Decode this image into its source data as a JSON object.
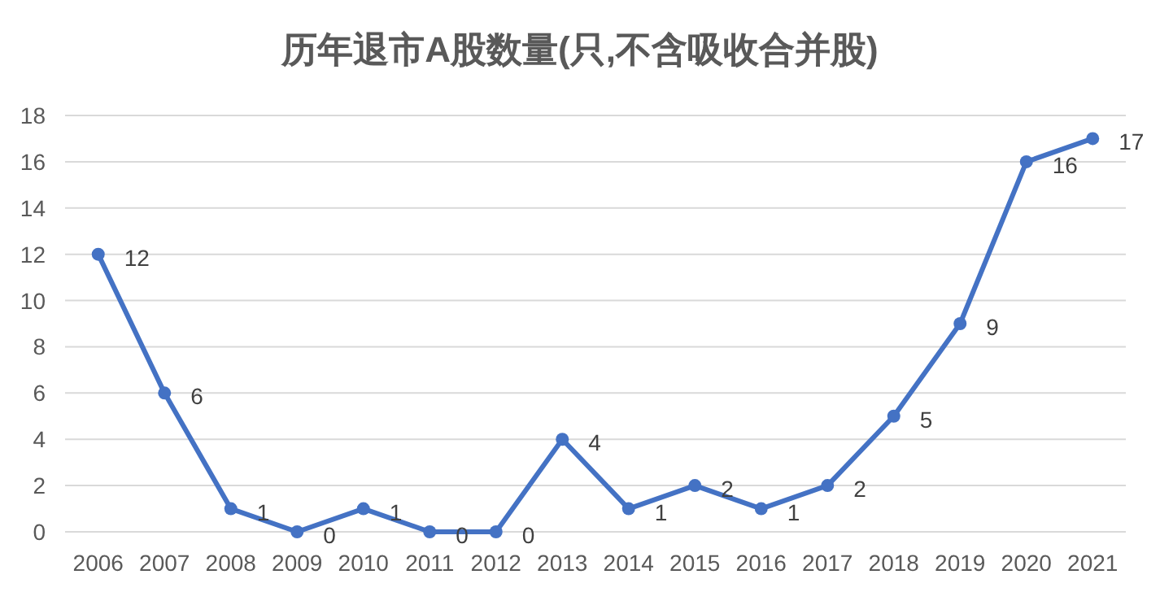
{
  "chart_data": {
    "type": "line",
    "title": "历年退市A股数量(只,不含吸收合并股)",
    "categories": [
      "2006",
      "2007",
      "2008",
      "2009",
      "2010",
      "2011",
      "2012",
      "2013",
      "2014",
      "2015",
      "2016",
      "2017",
      "2018",
      "2019",
      "2020",
      "2021"
    ],
    "values": [
      12,
      6,
      1,
      0,
      1,
      0,
      0,
      4,
      1,
      2,
      1,
      2,
      5,
      9,
      16,
      17
    ],
    "color": "#4472c4",
    "ylim": [
      0,
      18
    ],
    "yticks": [
      0,
      2,
      4,
      6,
      8,
      10,
      12,
      14,
      16,
      18
    ],
    "grid": "y",
    "marker": "circle",
    "line_style": "solid",
    "data_labels": true
  }
}
